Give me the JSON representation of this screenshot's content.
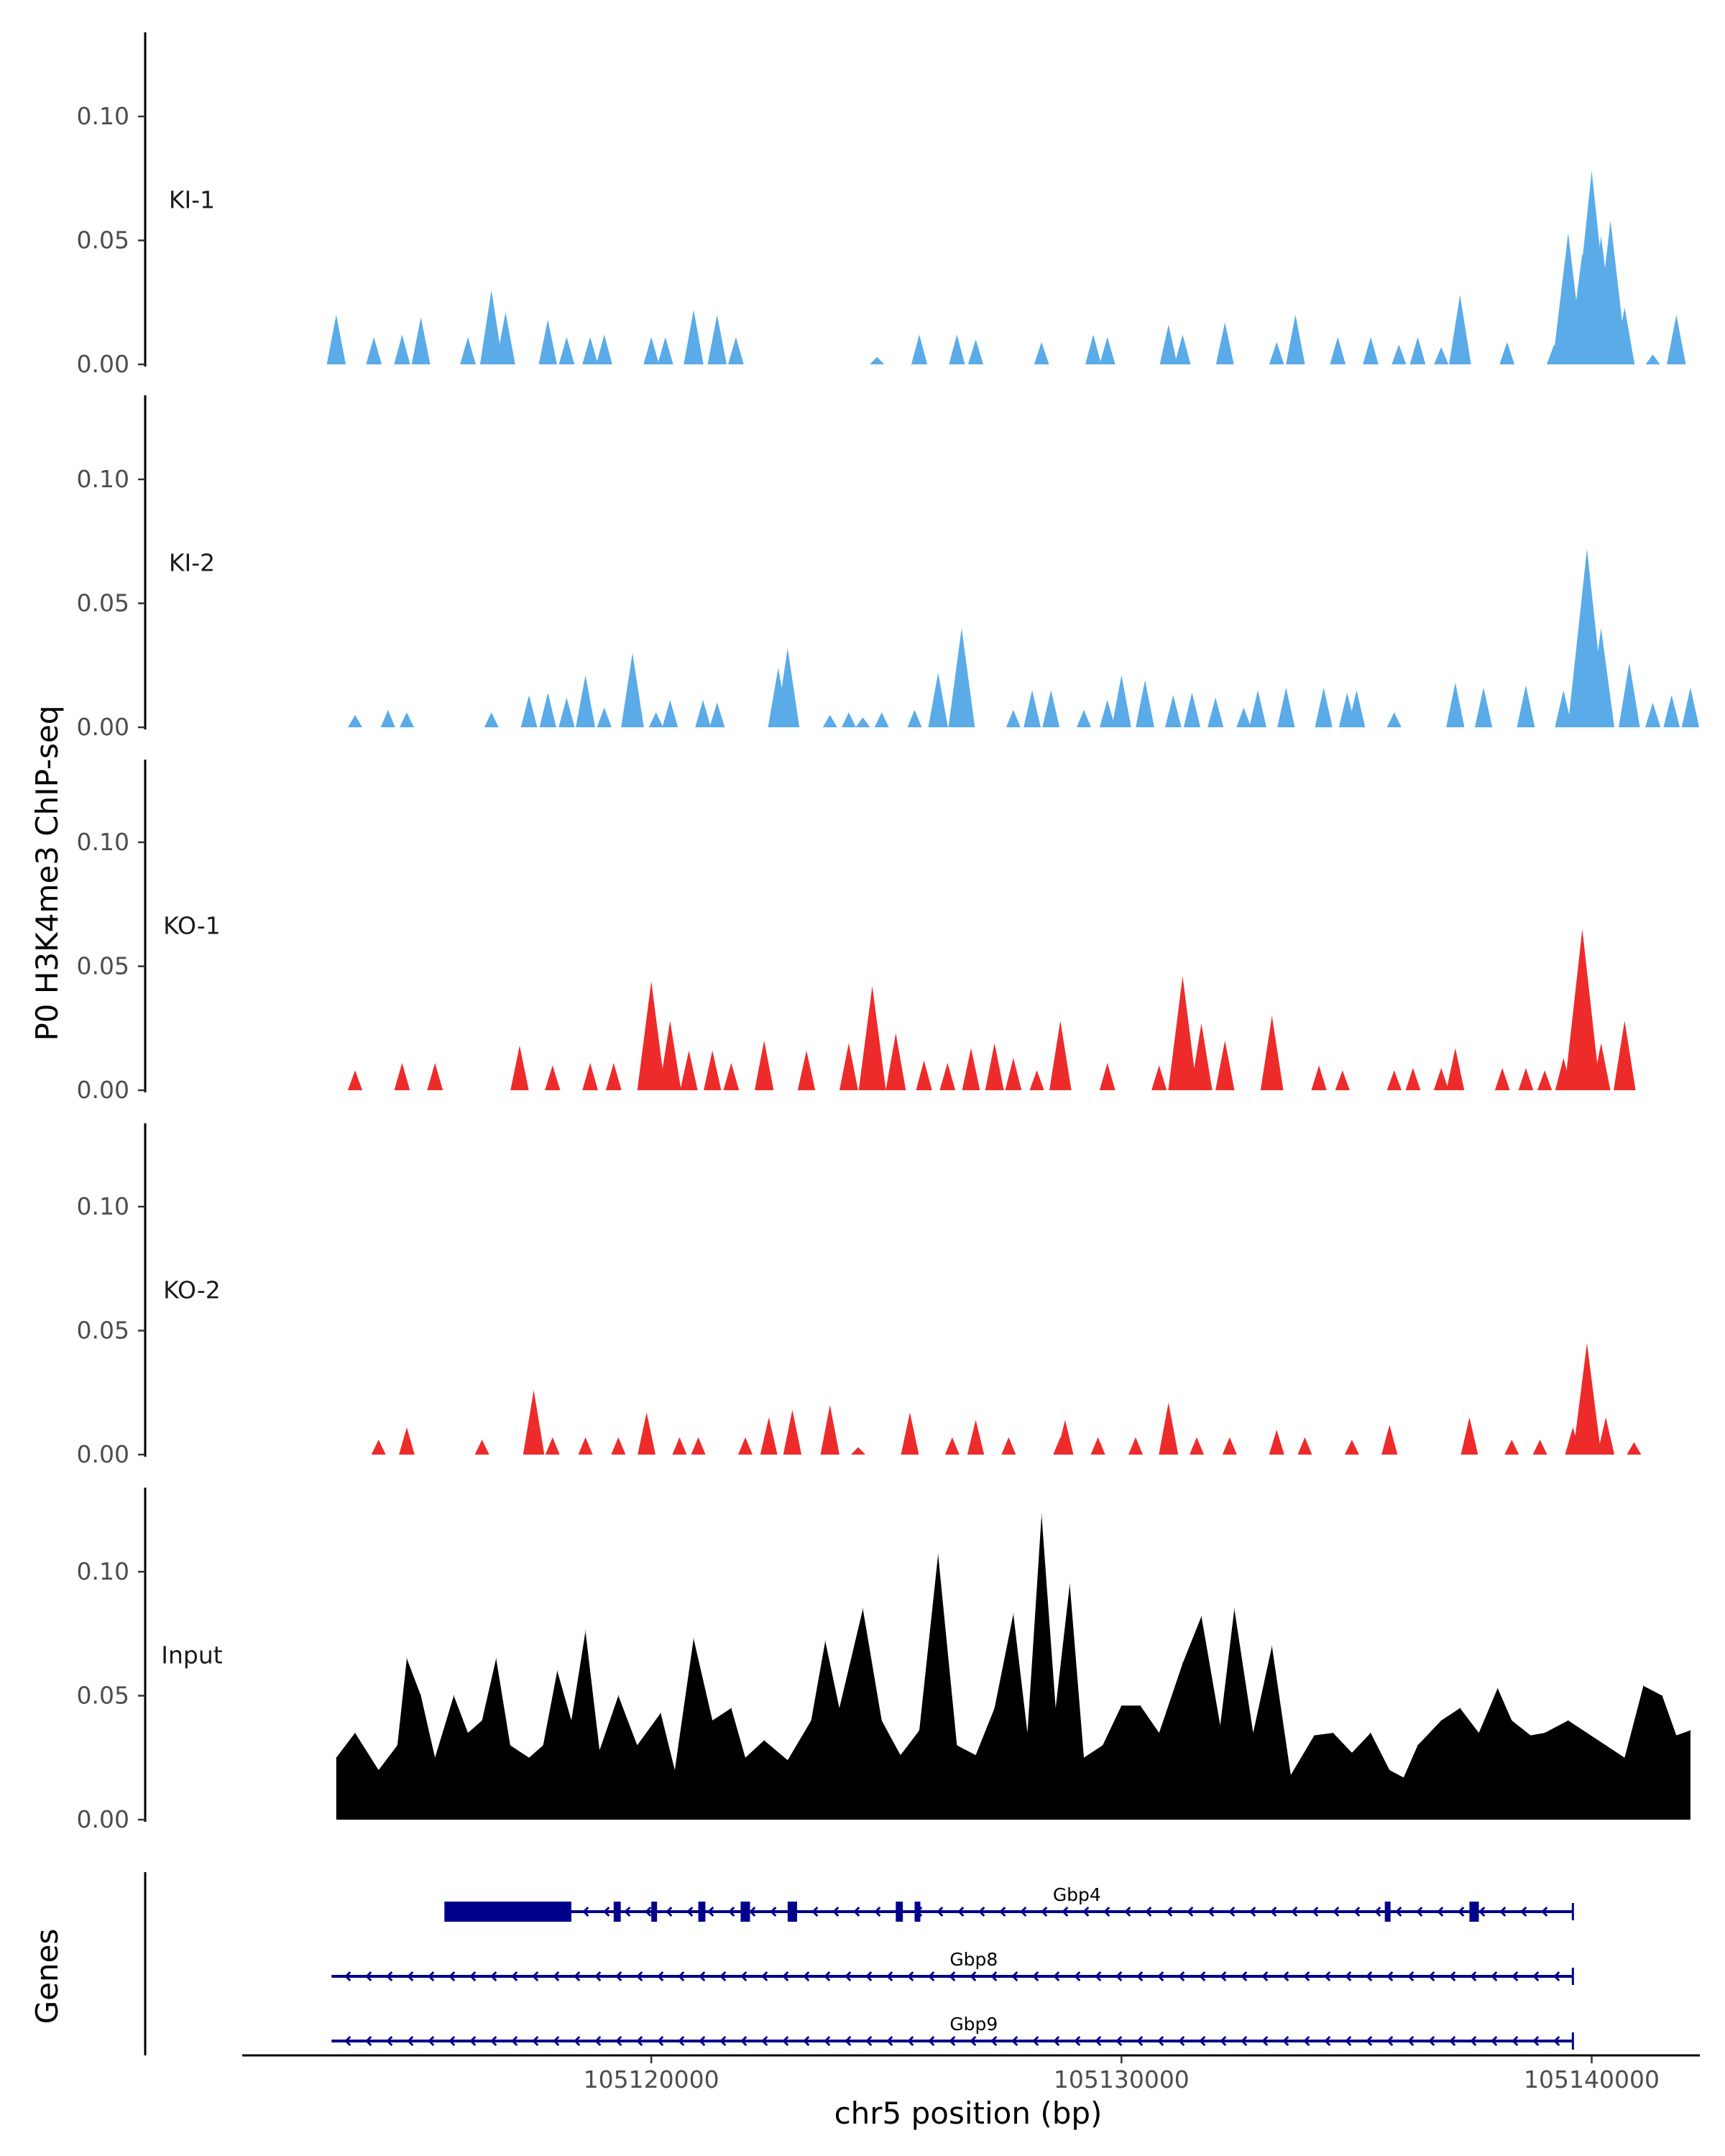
{
  "chart_data": {
    "type": "area",
    "title": "",
    "ylabel": "P0 H3K4me3 ChIP-seq",
    "xlabel": "chr5 position (bp)",
    "xlim": [
      105111300,
      105142300
    ],
    "ylim": [
      0,
      0.13
    ],
    "y_ticks": [
      "0.00",
      "0.05",
      "0.10"
    ],
    "y_tick_values": [
      0,
      0.05,
      0.1
    ],
    "x_ticks": [
      "105120000",
      "105130000",
      "105140000"
    ],
    "x_tick_values": [
      105120000,
      105130000,
      105140000
    ],
    "colors": {
      "KI": "#5aabe8",
      "KO": "#ee2b2b",
      "Input": "#000000",
      "gene": "#00008b"
    },
    "tracks": [
      {
        "label": "KI-1",
        "color": "#5aabe8",
        "peaks": [
          [
            105113300,
            0.02
          ],
          [
            105114100,
            0.011
          ],
          [
            105114700,
            0.012
          ],
          [
            105115100,
            0.019
          ],
          [
            105116100,
            0.011
          ],
          [
            105116600,
            0.03
          ],
          [
            105116900,
            0.021
          ],
          [
            105117800,
            0.018
          ],
          [
            105118200,
            0.011
          ],
          [
            105118700,
            0.011
          ],
          [
            105119000,
            0.012
          ],
          [
            105120000,
            0.011
          ],
          [
            105120300,
            0.011
          ],
          [
            105120900,
            0.022
          ],
          [
            105121400,
            0.02
          ],
          [
            105121800,
            0.011
          ],
          [
            105124800,
            0.003
          ],
          [
            105125700,
            0.012
          ],
          [
            105126500,
            0.012
          ],
          [
            105126900,
            0.01
          ],
          [
            105128300,
            0.009
          ],
          [
            105129400,
            0.012
          ],
          [
            105129700,
            0.011
          ],
          [
            105131000,
            0.016
          ],
          [
            105131300,
            0.012
          ],
          [
            105132200,
            0.017
          ],
          [
            105133300,
            0.009
          ],
          [
            105133700,
            0.02
          ],
          [
            105134600,
            0.011
          ],
          [
            105135300,
            0.011
          ],
          [
            105135900,
            0.008
          ],
          [
            105136300,
            0.011
          ],
          [
            105136800,
            0.007
          ],
          [
            105137200,
            0.028
          ],
          [
            105138200,
            0.009
          ],
          [
            105139200,
            0.008
          ],
          [
            105139500,
            0.053
          ],
          [
            105139800,
            0.045
          ],
          [
            105140000,
            0.078
          ],
          [
            105140200,
            0.052
          ],
          [
            105140400,
            0.058
          ],
          [
            105140700,
            0.023
          ],
          [
            105141300,
            0.004
          ],
          [
            105141800,
            0.02
          ]
        ]
      },
      {
        "label": "KI-2",
        "color": "#5aabe8",
        "peaks": [
          [
            105113700,
            0.005
          ],
          [
            105114400,
            0.007
          ],
          [
            105114800,
            0.006
          ],
          [
            105116600,
            0.006
          ],
          [
            105117400,
            0.013
          ],
          [
            105117800,
            0.014
          ],
          [
            105118200,
            0.012
          ],
          [
            105118600,
            0.021
          ],
          [
            105119000,
            0.008
          ],
          [
            105119600,
            0.03
          ],
          [
            105120100,
            0.006
          ],
          [
            105120400,
            0.011
          ],
          [
            105121100,
            0.011
          ],
          [
            105121400,
            0.01
          ],
          [
            105122700,
            0.024
          ],
          [
            105122900,
            0.032
          ],
          [
            105123800,
            0.005
          ],
          [
            105124200,
            0.006
          ],
          [
            105124500,
            0.004
          ],
          [
            105124900,
            0.006
          ],
          [
            105125600,
            0.007
          ],
          [
            105126100,
            0.022
          ],
          [
            105126600,
            0.04
          ],
          [
            105127700,
            0.007
          ],
          [
            105128100,
            0.015
          ],
          [
            105128500,
            0.015
          ],
          [
            105129200,
            0.007
          ],
          [
            105129700,
            0.011
          ],
          [
            105130000,
            0.021
          ],
          [
            105130500,
            0.019
          ],
          [
            105131100,
            0.013
          ],
          [
            105131500,
            0.014
          ],
          [
            105132000,
            0.012
          ],
          [
            105132600,
            0.008
          ],
          [
            105132900,
            0.015
          ],
          [
            105133500,
            0.016
          ],
          [
            105134300,
            0.016
          ],
          [
            105134800,
            0.014
          ],
          [
            105135000,
            0.015
          ],
          [
            105135800,
            0.006
          ],
          [
            105137100,
            0.018
          ],
          [
            105137700,
            0.016
          ],
          [
            105138600,
            0.017
          ],
          [
            105139400,
            0.015
          ],
          [
            105139900,
            0.072
          ],
          [
            105140200,
            0.04
          ],
          [
            105140800,
            0.026
          ],
          [
            105141300,
            0.01
          ],
          [
            105141700,
            0.013
          ],
          [
            105142100,
            0.016
          ]
        ]
      },
      {
        "label": "KO-1",
        "color": "#ee2b2b",
        "peaks": [
          [
            105113700,
            0.008
          ],
          [
            105114700,
            0.011
          ],
          [
            105115400,
            0.011
          ],
          [
            105117200,
            0.018
          ],
          [
            105117900,
            0.01
          ],
          [
            105118700,
            0.011
          ],
          [
            105119200,
            0.011
          ],
          [
            105119900,
            0.011
          ],
          [
            105120000,
            0.044
          ],
          [
            105120400,
            0.028
          ],
          [
            105120800,
            0.016
          ],
          [
            105121300,
            0.016
          ],
          [
            105121700,
            0.011
          ],
          [
            105122400,
            0.02
          ],
          [
            105123300,
            0.016
          ],
          [
            105124200,
            0.019
          ],
          [
            105124700,
            0.042
          ],
          [
            105125200,
            0.023
          ],
          [
            105125800,
            0.012
          ],
          [
            105126300,
            0.011
          ],
          [
            105126800,
            0.017
          ],
          [
            105127300,
            0.019
          ],
          [
            105127700,
            0.013
          ],
          [
            105128200,
            0.008
          ],
          [
            105128700,
            0.028
          ],
          [
            105129700,
            0.011
          ],
          [
            105130800,
            0.01
          ],
          [
            105131300,
            0.046
          ],
          [
            105131700,
            0.027
          ],
          [
            105132200,
            0.02
          ],
          [
            105133200,
            0.03
          ],
          [
            105134200,
            0.01
          ],
          [
            105134700,
            0.008
          ],
          [
            105135800,
            0.008
          ],
          [
            105136200,
            0.009
          ],
          [
            105136800,
            0.009
          ],
          [
            105137100,
            0.017
          ],
          [
            105138100,
            0.009
          ],
          [
            105138600,
            0.009
          ],
          [
            105139000,
            0.008
          ],
          [
            105139400,
            0.013
          ],
          [
            105139800,
            0.065
          ],
          [
            105140200,
            0.019
          ],
          [
            105140700,
            0.028
          ]
        ]
      },
      {
        "label": "KO-2",
        "color": "#ee2b2b",
        "peaks": [
          [
            105114200,
            0.006
          ],
          [
            105114800,
            0.011
          ],
          [
            105116400,
            0.006
          ],
          [
            105117500,
            0.026
          ],
          [
            105117900,
            0.007
          ],
          [
            105118600,
            0.007
          ],
          [
            105119300,
            0.007
          ],
          [
            105119900,
            0.017
          ],
          [
            105120600,
            0.007
          ],
          [
            105121000,
            0.007
          ],
          [
            105122000,
            0.007
          ],
          [
            105122500,
            0.015
          ],
          [
            105123000,
            0.018
          ],
          [
            105123800,
            0.02
          ],
          [
            105124400,
            0.003
          ],
          [
            105125500,
            0.017
          ],
          [
            105126400,
            0.007
          ],
          [
            105126900,
            0.014
          ],
          [
            105127600,
            0.007
          ],
          [
            105128700,
            0.007
          ],
          [
            105128800,
            0.014
          ],
          [
            105129500,
            0.007
          ],
          [
            105130300,
            0.007
          ],
          [
            105131000,
            0.021
          ],
          [
            105131600,
            0.007
          ],
          [
            105132300,
            0.007
          ],
          [
            105133300,
            0.01
          ],
          [
            105133900,
            0.007
          ],
          [
            105134900,
            0.006
          ],
          [
            105135700,
            0.012
          ],
          [
            105137400,
            0.015
          ],
          [
            105138300,
            0.006
          ],
          [
            105138900,
            0.006
          ],
          [
            105139600,
            0.011
          ],
          [
            105139900,
            0.045
          ],
          [
            105140300,
            0.015
          ],
          [
            105140900,
            0.005
          ]
        ]
      },
      {
        "label": "Input",
        "color": "#000000",
        "peaks": [
          [
            105113300,
            0.025
          ],
          [
            105113700,
            0.035
          ],
          [
            105114200,
            0.02
          ],
          [
            105114600,
            0.03
          ],
          [
            105114800,
            0.065
          ],
          [
            105115100,
            0.05
          ],
          [
            105115400,
            0.025
          ],
          [
            105115800,
            0.05
          ],
          [
            105116100,
            0.035
          ],
          [
            105116400,
            0.04
          ],
          [
            105116700,
            0.065
          ],
          [
            105117000,
            0.03
          ],
          [
            105117400,
            0.025
          ],
          [
            105117700,
            0.03
          ],
          [
            105118000,
            0.06
          ],
          [
            105118300,
            0.04
          ],
          [
            105118600,
            0.076
          ],
          [
            105118900,
            0.028
          ],
          [
            105119300,
            0.05
          ],
          [
            105119700,
            0.03
          ],
          [
            105120200,
            0.043
          ],
          [
            105120500,
            0.02
          ],
          [
            105120900,
            0.073
          ],
          [
            105121300,
            0.04
          ],
          [
            105121700,
            0.045
          ],
          [
            105122000,
            0.025
          ],
          [
            105122400,
            0.032
          ],
          [
            105122900,
            0.024
          ],
          [
            105123400,
            0.04
          ],
          [
            105123700,
            0.072
          ],
          [
            105124000,
            0.045
          ],
          [
            105124500,
            0.085
          ],
          [
            105124900,
            0.04
          ],
          [
            105125300,
            0.026
          ],
          [
            105125700,
            0.036
          ],
          [
            105126100,
            0.107
          ],
          [
            105126500,
            0.03
          ],
          [
            105126900,
            0.026
          ],
          [
            105127300,
            0.045
          ],
          [
            105127700,
            0.083
          ],
          [
            105128000,
            0.035
          ],
          [
            105128300,
            0.123
          ],
          [
            105128600,
            0.045
          ],
          [
            105128900,
            0.095
          ],
          [
            105129200,
            0.025
          ],
          [
            105129600,
            0.03
          ],
          [
            105130000,
            0.046
          ],
          [
            105130400,
            0.046
          ],
          [
            105130800,
            0.035
          ],
          [
            105131300,
            0.063
          ],
          [
            105131700,
            0.082
          ],
          [
            105132100,
            0.038
          ],
          [
            105132400,
            0.085
          ],
          [
            105132800,
            0.035
          ],
          [
            105133200,
            0.07
          ],
          [
            105133600,
            0.018
          ],
          [
            105134100,
            0.034
          ],
          [
            105134500,
            0.035
          ],
          [
            105134900,
            0.027
          ],
          [
            105135300,
            0.035
          ],
          [
            105135700,
            0.02
          ],
          [
            105136000,
            0.017
          ],
          [
            105136300,
            0.03
          ],
          [
            105136800,
            0.04
          ],
          [
            105137200,
            0.045
          ],
          [
            105137600,
            0.035
          ],
          [
            105138000,
            0.053
          ],
          [
            105138300,
            0.04
          ],
          [
            105138700,
            0.034
          ],
          [
            105139000,
            0.035
          ],
          [
            105139500,
            0.04
          ],
          [
            105139900,
            0.035
          ],
          [
            105140300,
            0.03
          ],
          [
            105140700,
            0.025
          ],
          [
            105141100,
            0.054
          ],
          [
            105141500,
            0.05
          ],
          [
            105141800,
            0.034
          ],
          [
            105142100,
            0.036
          ]
        ]
      }
    ],
    "genes": [
      {
        "name": "Gbp4",
        "start": 105115600,
        "end": 105139600,
        "strand": "-",
        "exons": [
          [
            105115600,
            105118300
          ],
          [
            105119200,
            105119350
          ],
          [
            105120000,
            105120100
          ],
          [
            105121000,
            105121150
          ],
          [
            105121900,
            105122100
          ],
          [
            105122900,
            105123100
          ],
          [
            105125200,
            105125350
          ],
          [
            105125600,
            105125700
          ],
          [
            105135600,
            105135700
          ],
          [
            105137400,
            105137600
          ]
        ]
      },
      {
        "name": "Gbp8",
        "start": 105113200,
        "end": 105139600,
        "strand": "-",
        "exons": []
      },
      {
        "name": "Gbp9",
        "start": 105113200,
        "end": 105139600,
        "strand": "-",
        "exons": []
      }
    ]
  },
  "gene_track": {
    "label": "Genes"
  }
}
